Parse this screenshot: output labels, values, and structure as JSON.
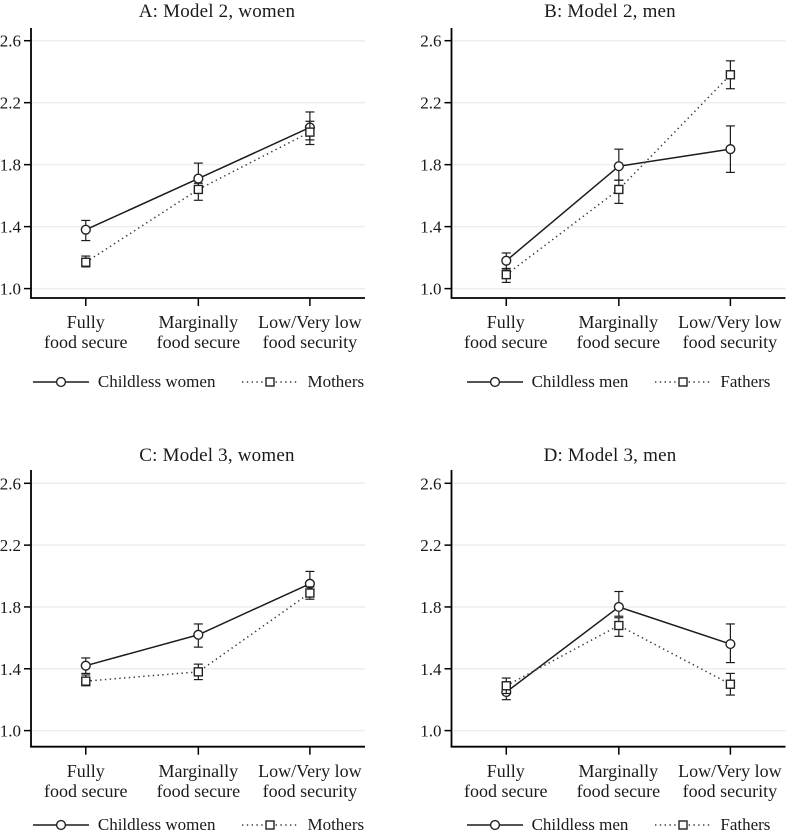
{
  "figure": {
    "background": "#ffffff",
    "colors": {
      "axis": "#000000",
      "text": "#1a1a1a",
      "gridline": "#ededed",
      "solid_line": "#1c1c1c",
      "dotted_line": "#3a3a3a",
      "marker_stroke": "#222222",
      "marker_fill": "#ffffff"
    }
  },
  "chart_data": [
    {
      "id": "A",
      "type": "line",
      "title": "A: Model 2, women",
      "categories": [
        [
          "Fully",
          "food secure"
        ],
        [
          "Marginally",
          "food secure"
        ],
        [
          "Low/Very low",
          "food security"
        ]
      ],
      "ytick_labels": [
        "2.6",
        "2.2",
        "1.8",
        "1.4",
        "1.0"
      ],
      "yticks": [
        2.6,
        2.2,
        1.8,
        1.4,
        1.0
      ],
      "ylim": [
        0.94,
        2.68
      ],
      "grid": true,
      "legend_position": "bottom",
      "series": [
        {
          "name": "Childless women",
          "marker": "circle",
          "line_style": "solid",
          "values": [
            1.38,
            1.71,
            2.04
          ],
          "ci_low": [
            1.31,
            1.63,
            1.96
          ],
          "ci_high": [
            1.44,
            1.81,
            2.14
          ]
        },
        {
          "name": "Mothers",
          "marker": "square",
          "line_style": "dotted",
          "values": [
            1.17,
            1.64,
            2.01
          ],
          "ci_low": [
            1.14,
            1.57,
            1.93
          ],
          "ci_high": [
            1.21,
            1.68,
            2.08
          ]
        }
      ]
    },
    {
      "id": "B",
      "type": "line",
      "title": "B: Model 2, men",
      "categories": [
        [
          "Fully",
          "food secure"
        ],
        [
          "Marginally",
          "food secure"
        ],
        [
          "Low/Very low",
          "food security"
        ]
      ],
      "ytick_labels": [
        "2.6",
        "2.2",
        "1.8",
        "1.4",
        "1.0"
      ],
      "yticks": [
        2.6,
        2.2,
        1.8,
        1.4,
        1.0
      ],
      "ylim": [
        0.94,
        2.68
      ],
      "grid": true,
      "legend_position": "bottom",
      "series": [
        {
          "name": "Childless men",
          "marker": "circle",
          "line_style": "solid",
          "values": [
            1.18,
            1.79,
            1.9
          ],
          "ci_low": [
            1.12,
            1.7,
            1.75
          ],
          "ci_high": [
            1.23,
            1.9,
            2.05
          ]
        },
        {
          "name": "Fathers",
          "marker": "square",
          "line_style": "dotted",
          "values": [
            1.09,
            1.64,
            2.38
          ],
          "ci_low": [
            1.04,
            1.55,
            2.29
          ],
          "ci_high": [
            1.13,
            1.7,
            2.47
          ]
        }
      ]
    },
    {
      "id": "C",
      "type": "line",
      "title": "C: Model 3, women",
      "categories": [
        [
          "Fully",
          "food secure"
        ],
        [
          "Marginally",
          "food secure"
        ],
        [
          "Low/Very low",
          "food security"
        ]
      ],
      "ytick_labels": [
        "2.6",
        "2.2",
        "1.8",
        "1.4",
        "1.0"
      ],
      "yticks": [
        2.6,
        2.2,
        1.8,
        1.4,
        1.0
      ],
      "ylim": [
        0.94,
        2.68
      ],
      "grid": true,
      "legend_position": "bottom",
      "series": [
        {
          "name": "Childless women",
          "marker": "circle",
          "line_style": "solid",
          "values": [
            1.42,
            1.62,
            1.95
          ],
          "ci_low": [
            1.37,
            1.54,
            1.87
          ],
          "ci_high": [
            1.47,
            1.69,
            2.03
          ]
        },
        {
          "name": "Mothers",
          "marker": "square",
          "line_style": "dotted",
          "values": [
            1.32,
            1.38,
            1.89
          ],
          "ci_low": [
            1.29,
            1.33,
            1.85
          ],
          "ci_high": [
            1.36,
            1.43,
            1.93
          ]
        }
      ]
    },
    {
      "id": "D",
      "type": "line",
      "title": "D: Model 3, men",
      "categories": [
        [
          "Fully",
          "food secure"
        ],
        [
          "Marginally",
          "food secure"
        ],
        [
          "Low/Very low",
          "food security"
        ]
      ],
      "ytick_labels": [
        "2.6",
        "2.2",
        "1.8",
        "1.4",
        "1.0"
      ],
      "yticks": [
        2.6,
        2.2,
        1.8,
        1.4,
        1.0
      ],
      "ylim": [
        0.94,
        2.68
      ],
      "grid": true,
      "legend_position": "bottom",
      "series": [
        {
          "name": "Childless men",
          "marker": "circle",
          "line_style": "solid",
          "values": [
            1.25,
            1.8,
            1.56
          ],
          "ci_low": [
            1.2,
            1.74,
            1.44
          ],
          "ci_high": [
            1.31,
            1.9,
            1.69
          ]
        },
        {
          "name": "Fathers",
          "marker": "square",
          "line_style": "dotted",
          "values": [
            1.29,
            1.68,
            1.3
          ],
          "ci_low": [
            1.24,
            1.61,
            1.23
          ],
          "ci_high": [
            1.34,
            1.73,
            1.37
          ]
        }
      ]
    }
  ]
}
